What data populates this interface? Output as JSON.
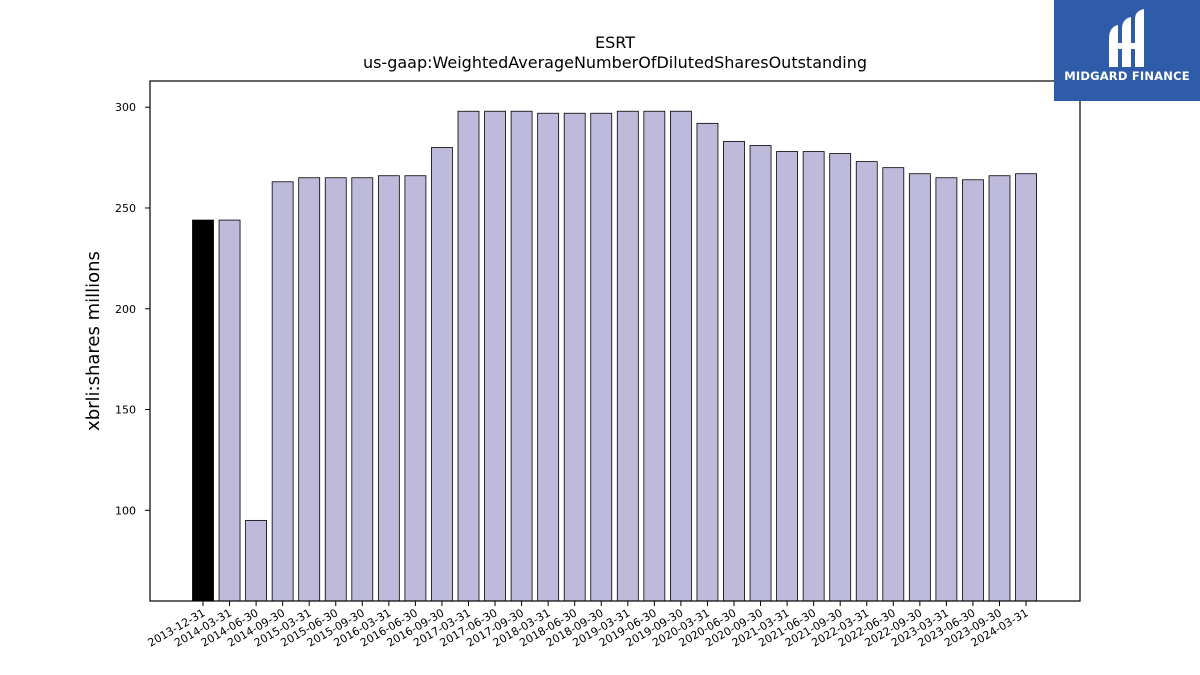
{
  "chart_data": {
    "type": "bar",
    "title": "ESRT",
    "subtitle": "us-gaap:WeightedAverageNumberOfDilutedSharesOutstanding",
    "ylabel": "xbrli:shares millions",
    "xlabel": "",
    "ylim": [
      55,
      313
    ],
    "yticks": [
      100,
      150,
      200,
      250,
      300
    ],
    "grid": false,
    "highlight_color": "#000000",
    "bar_color": "#bebadb",
    "categories": [
      "2013-12-31",
      "2014-03-31",
      "2014-06-30",
      "2014-09-30",
      "2015-03-31",
      "2015-06-30",
      "2015-09-30",
      "2016-03-31",
      "2016-06-30",
      "2016-09-30",
      "2017-03-31",
      "2017-06-30",
      "2017-09-30",
      "2018-03-31",
      "2018-06-30",
      "2018-09-30",
      "2019-03-31",
      "2019-06-30",
      "2019-09-30",
      "2020-03-31",
      "2020-06-30",
      "2020-09-30",
      "2021-03-31",
      "2021-06-30",
      "2021-09-30",
      "2022-03-31",
      "2022-06-30",
      "2022-09-30",
      "2023-03-31",
      "2023-06-30",
      "2023-09-30",
      "2024-03-31"
    ],
    "values": [
      244,
      244,
      95,
      263,
      265,
      265,
      265,
      266,
      266,
      280,
      298,
      298,
      298,
      297,
      297,
      297,
      298,
      298,
      298,
      292,
      283,
      281,
      278,
      278,
      277,
      273,
      270,
      267,
      265,
      264,
      266,
      267
    ]
  },
  "logo": {
    "text": "MIDGARD FINANCE",
    "background": "#2f5ca8"
  }
}
